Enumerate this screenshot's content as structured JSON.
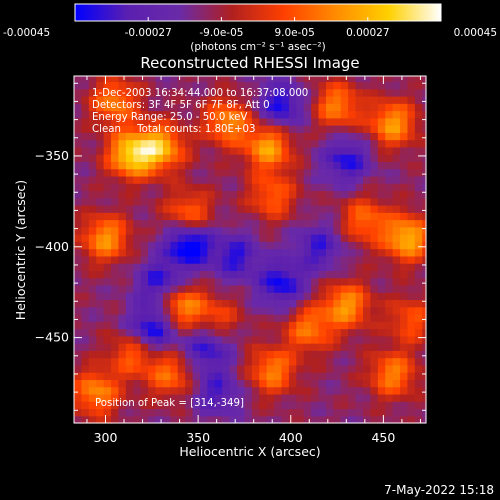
{
  "chart_data": {
    "type": "heatmap",
    "title": "Reconstructed RHESSI Image",
    "xlabel": "Heliocentric X (arcsec)",
    "ylabel": "Heliocentric Y (arcsec)",
    "xlim": [
      283,
      473
    ],
    "ylim": [
      -497,
      -306
    ],
    "x_ticks": [
      300,
      350,
      400,
      450
    ],
    "y_ticks": [
      -350,
      -400,
      -450
    ],
    "colorbar": {
      "vmin": -0.00045,
      "vmax": 0.00045,
      "ticks": [
        "-0.00045",
        "-0.00027",
        "-9.0e-05",
        "9.0e-05",
        "0.00027",
        "0.00045"
      ],
      "unit_label": "(photons cm⁻² s⁻¹ asec⁻²)",
      "colors": [
        "#0000ff",
        "#5a1fb0",
        "#6a2aa8",
        "#b02020",
        "#ff4000",
        "#ff8c00",
        "#ffd000",
        "#ffffff"
      ]
    },
    "annotations": [
      "1-Dec-2003 16:34:44.000 to 16:37:08.000",
      "Detectors: 3F 4F 5F 6F 7F 8F, Att 0",
      "Energy Range: 25.0 - 50.0 keV",
      "Clean     Total counts: 1.80E+03"
    ],
    "peak_label": "Position of Peak = [314,-349]",
    "peak": [
      314,
      -349
    ],
    "hot_spots": [
      {
        "x": 305,
        "y": -320,
        "v": 0.0003
      },
      {
        "x": 314,
        "y": -349,
        "v": 0.00045
      },
      {
        "x": 330,
        "y": -345,
        "v": 0.00038
      },
      {
        "x": 300,
        "y": -395,
        "v": 0.00034
      },
      {
        "x": 345,
        "y": -382,
        "v": 0.00028
      },
      {
        "x": 390,
        "y": -372,
        "v": 0.00024
      },
      {
        "x": 366,
        "y": -331,
        "v": 0.00032
      },
      {
        "x": 388,
        "y": -345,
        "v": 0.00036
      },
      {
        "x": 425,
        "y": -322,
        "v": 0.0003
      },
      {
        "x": 455,
        "y": -332,
        "v": 0.00035
      },
      {
        "x": 440,
        "y": -385,
        "v": 0.00026
      },
      {
        "x": 463,
        "y": -395,
        "v": 0.0004
      },
      {
        "x": 340,
        "y": -432,
        "v": 0.00036
      },
      {
        "x": 315,
        "y": -458,
        "v": 0.00026
      },
      {
        "x": 295,
        "y": -480,
        "v": 0.00032
      },
      {
        "x": 335,
        "y": -470,
        "v": 0.00026
      },
      {
        "x": 390,
        "y": -468,
        "v": 0.0003
      },
      {
        "x": 410,
        "y": -445,
        "v": 0.00028
      },
      {
        "x": 430,
        "y": -432,
        "v": 0.00034
      },
      {
        "x": 455,
        "y": -470,
        "v": 0.0003
      },
      {
        "x": 465,
        "y": -440,
        "v": 0.00022
      },
      {
        "x": 360,
        "y": -440,
        "v": 0.0002
      }
    ],
    "cold_spots": [
      {
        "x": 345,
        "y": -398,
        "v": -0.0004
      },
      {
        "x": 325,
        "y": -445,
        "v": -0.00036
      },
      {
        "x": 330,
        "y": -420,
        "v": -0.0003
      },
      {
        "x": 395,
        "y": -322,
        "v": -0.0003
      },
      {
        "x": 430,
        "y": -352,
        "v": -0.00028
      },
      {
        "x": 395,
        "y": -420,
        "v": -0.0003
      },
      {
        "x": 370,
        "y": -405,
        "v": -0.00026
      },
      {
        "x": 355,
        "y": -455,
        "v": -0.00028
      },
      {
        "x": 415,
        "y": -400,
        "v": -0.00024
      },
      {
        "x": 360,
        "y": -480,
        "v": -0.00022
      }
    ]
  },
  "footer": {
    "timestamp": "7-May-2022 15:18"
  }
}
